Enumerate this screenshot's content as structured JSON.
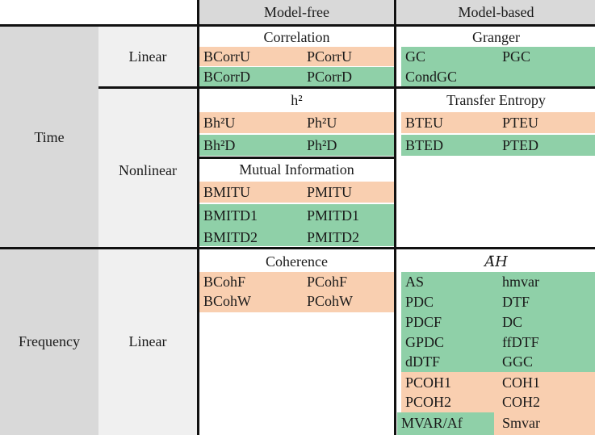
{
  "headers": {
    "model_free": "Model-free",
    "model_based": "Model-based"
  },
  "rows": {
    "time": "Time",
    "frequency": "Frequency"
  },
  "subrows": {
    "linear_time": "Linear",
    "nonlinear": "Nonlinear",
    "linear_freq": "Linear"
  },
  "cells": {
    "correlation": {
      "title": "Correlation",
      "r1": [
        "BCorrU",
        "PCorrU"
      ],
      "r2": [
        "BCorrD",
        "PCorrD"
      ]
    },
    "granger": {
      "title": "Granger",
      "r1": [
        "GC",
        "PGC"
      ],
      "r2": [
        "CondGC",
        ""
      ]
    },
    "h2": {
      "title": "h²",
      "r1": [
        "Bh²U",
        "Ph²U"
      ],
      "r2": [
        "Bh²D",
        "Ph²D"
      ]
    },
    "transfer_entropy": {
      "title": "Transfer Entropy",
      "r1": [
        "BTEU",
        "PTEU"
      ],
      "r2": [
        "BTED",
        "PTED"
      ]
    },
    "mutual_information": {
      "title": "Mutual Information",
      "r1": [
        "BMITU",
        "PMITU"
      ],
      "r2": [
        "BMITD1",
        "PMITD1"
      ],
      "r3": [
        "BMITD2",
        "PMITD2"
      ]
    },
    "coherence": {
      "title": "Coherence",
      "r1": [
        "BCohF",
        "PCohF"
      ],
      "r2": [
        "BCohW",
        "PCohW"
      ]
    },
    "ah": {
      "title": "𝐴̄𝐻",
      "green": [
        [
          "AS",
          "hmvar"
        ],
        [
          "PDC",
          "DTF"
        ],
        [
          "PDCF",
          "DC"
        ],
        [
          "GPDC",
          "ffDTF"
        ],
        [
          "dDTF",
          "GGC"
        ]
      ],
      "orange": [
        [
          "PCOH1",
          "COH1"
        ],
        [
          "PCOH2",
          "COH2"
        ]
      ],
      "last": [
        "MVAR/Af",
        "Smvar"
      ]
    }
  },
  "colors": {
    "orange": "#f9cfb0",
    "green": "#8fd0a8",
    "gray": "#d9d9d9",
    "light_gray": "#f0f0f0"
  }
}
